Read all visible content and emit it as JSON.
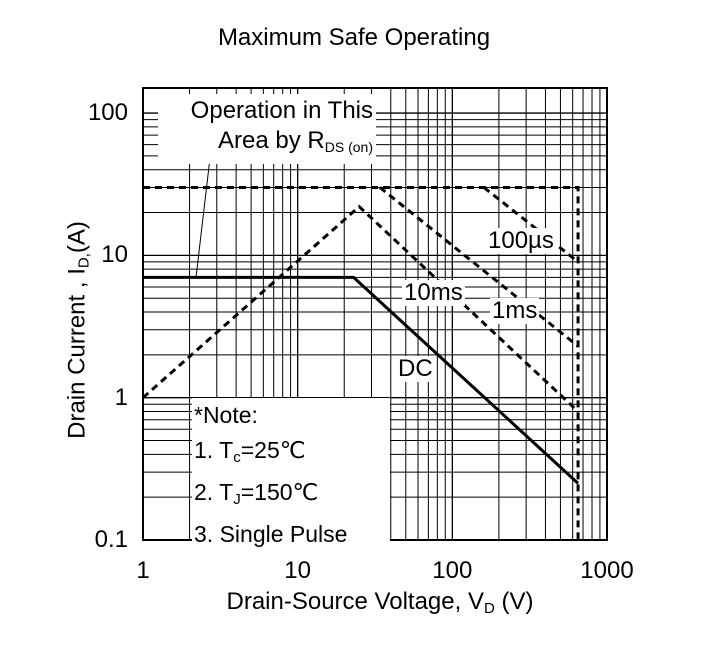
{
  "chart_data": {
    "type": "line",
    "title": "Maximum Safe Operating",
    "xlabel": "Drain-Source Voltage, V",
    "xlabel_sub": "D",
    "xlabel_unit": " (V)",
    "ylabel": "Drain Current , I",
    "ylabel_sub": "D,",
    "ylabel_unit": "(A)",
    "xscale": "log",
    "yscale": "log",
    "xlim": [
      1,
      1000
    ],
    "ylim": [
      0.1,
      150
    ],
    "grid": true,
    "x_ticks": [
      "1",
      "10",
      "100",
      "1000"
    ],
    "y_ticks": [
      "0.1",
      "1",
      "10",
      "100"
    ],
    "series": [
      {
        "name": "DC",
        "style": "solid",
        "points": [
          [
            1,
            7
          ],
          [
            23,
            7
          ],
          [
            650,
            0.25
          ]
        ]
      },
      {
        "name": "10ms",
        "style": "dashed",
        "points": [
          [
            1,
            1
          ],
          [
            25,
            22
          ],
          [
            650,
            0.8
          ]
        ]
      },
      {
        "name": "1ms",
        "style": "dashed",
        "points": [
          [
            34,
            30
          ],
          [
            650,
            2.3
          ]
        ]
      },
      {
        "name": "100µs",
        "style": "dashed",
        "points": [
          [
            160,
            30
          ],
          [
            650,
            9
          ]
        ]
      },
      {
        "name": "",
        "style": "dashed",
        "points": [
          [
            1,
            30
          ],
          [
            650,
            30
          ],
          [
            650,
            0.1
          ]
        ]
      }
    ],
    "annotations": {
      "rds_line1": "Operation in This",
      "rds_line2": "Area by R",
      "rds_sub": "DS (on)",
      "note_title": "*Note:",
      "note1_prefix": "1. T",
      "note1_sub": "c",
      "note1_suffix": "=25℃",
      "note2_prefix": "2. T",
      "note2_sub": "J",
      "note2_suffix": "=150℃",
      "note3": "3. Single Pulse",
      "label_dc": "DC",
      "label_10ms": "10ms",
      "label_1ms": "1ms",
      "label_100us": "100µs"
    }
  }
}
